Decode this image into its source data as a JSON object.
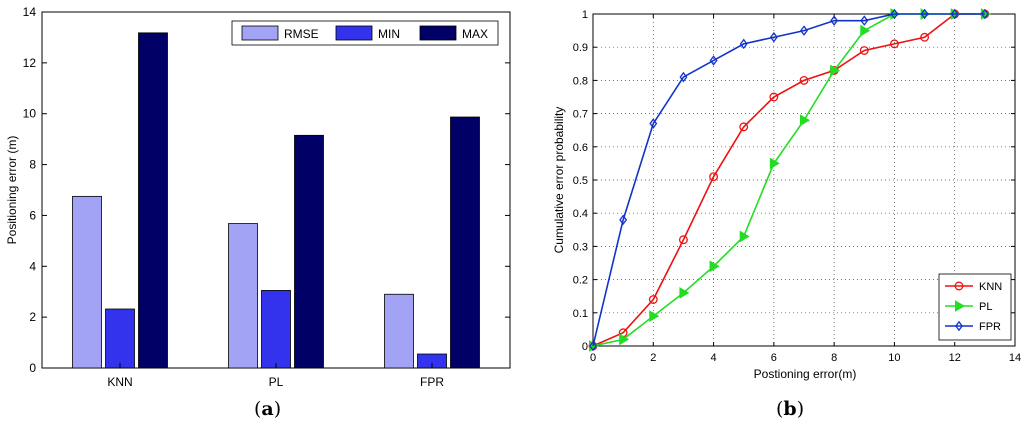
{
  "chart_data": [
    {
      "type": "bar",
      "panel_label": "a",
      "ylabel": "Positioning error (m)",
      "xlabel": "",
      "ylim": [
        0,
        14
      ],
      "yticks": [
        0,
        2,
        4,
        6,
        8,
        10,
        12,
        14
      ],
      "categories": [
        "KNN",
        "PL",
        "FPR"
      ],
      "series": [
        {
          "name": "RMSE",
          "color": "#a3a3f5",
          "values": [
            6.75,
            5.68,
            2.9
          ]
        },
        {
          "name": "MIN",
          "color": "#3333ee",
          "values": [
            2.32,
            3.05,
            0.55
          ]
        },
        {
          "name": "MAX",
          "color": "#000066",
          "values": [
            13.18,
            9.15,
            9.87
          ]
        }
      ],
      "legend": {
        "position": "top-right"
      },
      "grid": false
    },
    {
      "type": "line",
      "panel_label": "b",
      "ylabel": "Cumulative error probability",
      "xlabel": "Postioning error(m)",
      "xlim": [
        0,
        14
      ],
      "ylim": [
        0,
        1
      ],
      "xticks": [
        0,
        2,
        4,
        6,
        8,
        10,
        12,
        14
      ],
      "yticks": [
        "0",
        "0.1",
        "0.2",
        "0.3",
        "0.4",
        "0.5",
        "0.6",
        "0.7",
        "0.8",
        "0.9",
        "1"
      ],
      "grid": true,
      "legend": {
        "position": "bottom-right"
      },
      "series": [
        {
          "name": "KNN",
          "color": "#ee1111",
          "marker": "circle",
          "x": [
            0,
            1,
            2,
            3,
            4,
            5,
            6,
            7,
            8,
            9,
            10,
            11,
            12,
            13
          ],
          "y": [
            0,
            0.04,
            0.14,
            0.32,
            0.51,
            0.66,
            0.75,
            0.8,
            0.83,
            0.89,
            0.91,
            0.93,
            1.0,
            1.0
          ]
        },
        {
          "name": "PL",
          "color": "#22dd22",
          "marker": "triangle-right",
          "x": [
            0,
            1,
            2,
            3,
            4,
            5,
            6,
            7,
            8,
            9,
            10,
            11,
            12,
            13
          ],
          "y": [
            0,
            0.02,
            0.09,
            0.16,
            0.24,
            0.33,
            0.55,
            0.68,
            0.83,
            0.95,
            1.0,
            1.0,
            1.0,
            1.0
          ]
        },
        {
          "name": "FPR",
          "color": "#1133cc",
          "marker": "diamond",
          "x": [
            0,
            1,
            2,
            3,
            4,
            5,
            6,
            7,
            8,
            9,
            10,
            11,
            12,
            13
          ],
          "y": [
            0,
            0.38,
            0.67,
            0.81,
            0.86,
            0.91,
            0.93,
            0.95,
            0.98,
            0.98,
            1.0,
            1.0,
            1.0,
            1.0
          ]
        }
      ]
    }
  ]
}
